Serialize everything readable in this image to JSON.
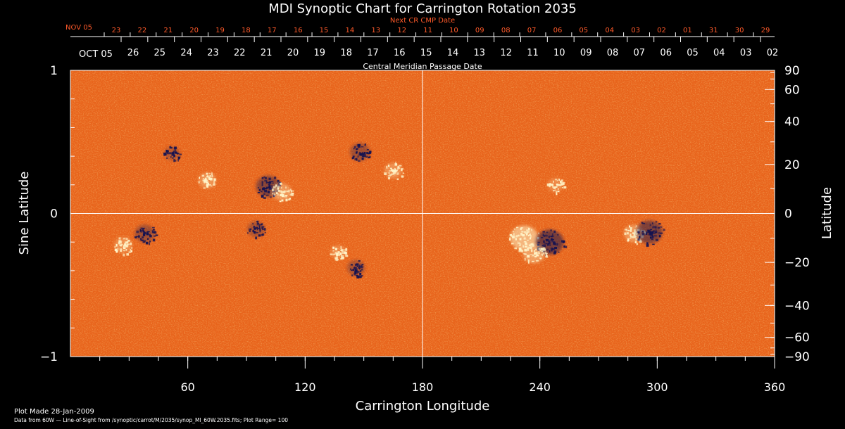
{
  "chart_data": {
    "type": "heatmap",
    "title": "MDI Synoptic Chart for Carrington Rotation 2035",
    "xlabel": "Carrington Longitude",
    "ylabel_left": "Sine Latitude",
    "ylabel_right": "Latitude",
    "xlim": [
      0,
      360
    ],
    "ylim": [
      -1,
      1
    ],
    "x_ticks": [
      60,
      120,
      180,
      240,
      300,
      360
    ],
    "y_left_ticks": [
      -1,
      0,
      1
    ],
    "y_right_ticks": [
      90,
      60,
      40,
      20,
      0,
      -20,
      -40,
      -60,
      -90
    ],
    "top_axes": {
      "next_cr_label": "Next CR CMP Date",
      "next_cr_month": "NOV 05",
      "next_cr_days": [
        "23",
        "22",
        "21",
        "20",
        "19",
        "18",
        "17",
        "16",
        "15",
        "14",
        "13",
        "12",
        "11",
        "10",
        "09",
        "08",
        "07",
        "06",
        "05",
        "04",
        "03",
        "02",
        "01",
        "31",
        "30",
        "29"
      ],
      "cmp_label": "Central Meridian Passage Date",
      "cmp_month": "OCT 05",
      "cmp_days": [
        "26",
        "25",
        "24",
        "23",
        "22",
        "21",
        "20",
        "19",
        "18",
        "17",
        "16",
        "15",
        "14",
        "13",
        "12",
        "11",
        "10",
        "09",
        "08",
        "07",
        "06",
        "05",
        "04",
        "03",
        "02"
      ]
    },
    "plot_range": 100,
    "colors": {
      "background": "#000000",
      "field": "#e8641c",
      "axes": "#ffffff",
      "top_axis_text": "#ff5a2a",
      "positive": "#fff4c8",
      "negative": "#141250"
    },
    "active_regions": [
      {
        "lon": 232,
        "sinlat": -0.17,
        "polarity": "positive",
        "strength": 1.0
      },
      {
        "lon": 245,
        "sinlat": -0.2,
        "polarity": "negative",
        "strength": 1.0
      },
      {
        "lon": 237,
        "sinlat": -0.28,
        "polarity": "positive",
        "strength": 0.7
      },
      {
        "lon": 288,
        "sinlat": -0.14,
        "polarity": "positive",
        "strength": 0.6
      },
      {
        "lon": 296,
        "sinlat": -0.13,
        "polarity": "negative",
        "strength": 0.9
      },
      {
        "lon": 101,
        "sinlat": 0.19,
        "polarity": "negative",
        "strength": 0.8
      },
      {
        "lon": 108,
        "sinlat": 0.15,
        "polarity": "positive",
        "strength": 0.6
      },
      {
        "lon": 70,
        "sinlat": 0.23,
        "polarity": "positive",
        "strength": 0.5
      },
      {
        "lon": 148,
        "sinlat": 0.43,
        "polarity": "negative",
        "strength": 0.6
      },
      {
        "lon": 165,
        "sinlat": 0.3,
        "polarity": "positive",
        "strength": 0.5
      },
      {
        "lon": 52,
        "sinlat": 0.42,
        "polarity": "negative",
        "strength": 0.4
      },
      {
        "lon": 38,
        "sinlat": -0.14,
        "polarity": "negative",
        "strength": 0.6
      },
      {
        "lon": 27,
        "sinlat": -0.22,
        "polarity": "positive",
        "strength": 0.5
      },
      {
        "lon": 95,
        "sinlat": -0.11,
        "polarity": "negative",
        "strength": 0.5
      },
      {
        "lon": 146,
        "sinlat": -0.38,
        "polarity": "negative",
        "strength": 0.5
      },
      {
        "lon": 137,
        "sinlat": -0.27,
        "polarity": "positive",
        "strength": 0.4
      },
      {
        "lon": 248,
        "sinlat": 0.2,
        "polarity": "positive",
        "strength": 0.4
      }
    ]
  },
  "footer": {
    "plot_made": "Plot Made 28-Jan-2009",
    "data_note": "Data from 60W — Line-of-Sight from /synoptic/carrot/M/2035/synop_Ml_60W.2035.fits; Plot Range=  100"
  }
}
